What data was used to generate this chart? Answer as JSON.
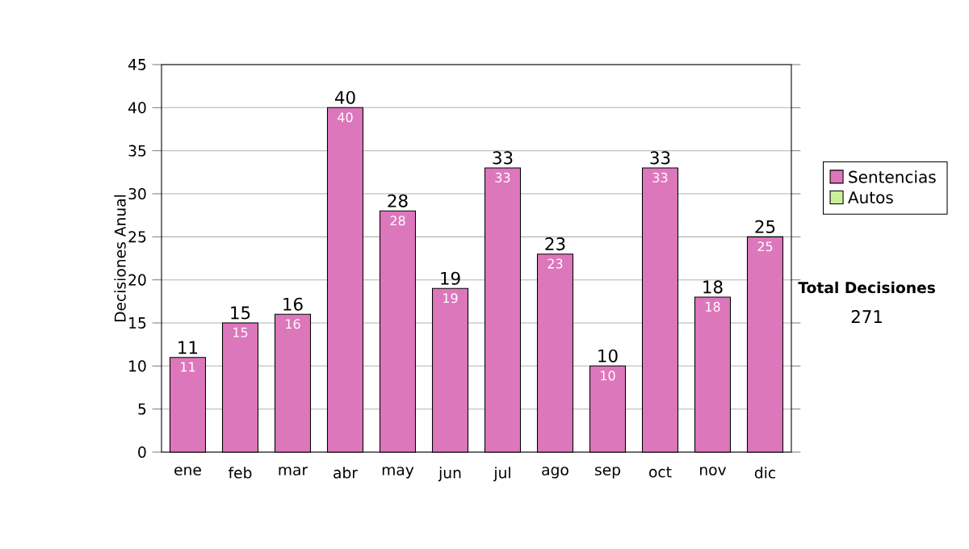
{
  "chart_data": {
    "type": "bar",
    "ylabel": "Decisiones Anual",
    "categories": [
      "ene",
      "feb",
      "mar",
      "abr",
      "may",
      "jun",
      "jul",
      "ago",
      "sep",
      "oct",
      "nov",
      "dic"
    ],
    "series": [
      {
        "name": "Sentencias",
        "color": "#dd77bb",
        "values": [
          11,
          15,
          16,
          40,
          28,
          19,
          33,
          23,
          10,
          33,
          18,
          25
        ]
      },
      {
        "name": "Autos",
        "color": "#ccee99",
        "values": [
          null,
          null,
          null,
          null,
          null,
          null,
          null,
          null,
          null,
          null,
          null,
          null
        ]
      }
    ],
    "ylim": [
      0,
      45
    ],
    "yticks": [
      0,
      5,
      10,
      15,
      20,
      25,
      30,
      35,
      40,
      45
    ],
    "totals": [
      "11",
      "15",
      "16",
      "40",
      "28",
      "19",
      "33",
      "23",
      "10",
      "33",
      "18",
      "25"
    ],
    "grid": "y",
    "legend": "right",
    "data_labels": true,
    "annotations": [
      "Total Decisiones",
      "271"
    ]
  }
}
